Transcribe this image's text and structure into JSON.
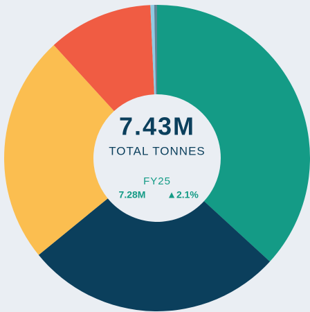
{
  "chart_data": {
    "type": "donut",
    "values": [
      36.8,
      27.3,
      24.1,
      11.1,
      0.4,
      0.3
    ],
    "colors": [
      "#149b86",
      "#0b3f5c",
      "#fbbe50",
      "#f05c43",
      "#8fcbe3",
      "#5f8596"
    ],
    "center": {
      "total": "7.43M",
      "total_label": "TOTAL TONNES",
      "prior_label": "FY25",
      "prior_total": "7.28M",
      "change": "▲2.1%"
    }
  }
}
